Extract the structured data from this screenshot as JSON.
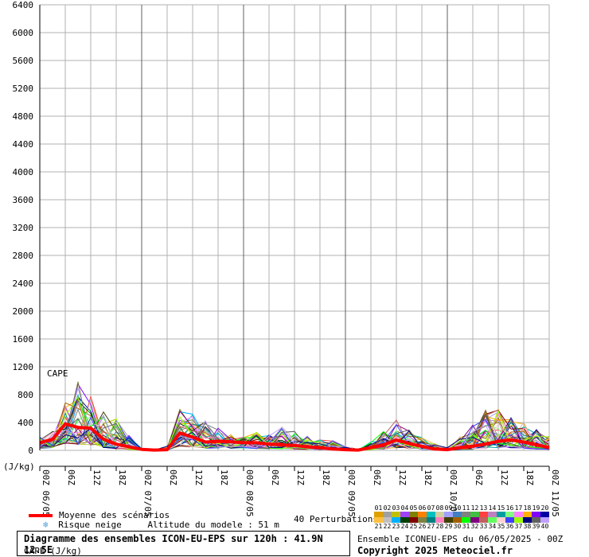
{
  "chart_data": {
    "type": "line",
    "title": "Diagramme des ensembles ICON-EU-EPS sur 120h : 41.9N 12.5E",
    "subtitle": "CAPE (J/kg)",
    "inner_label": "CAPE",
    "ylabel": "(J/kg)",
    "ylim": [
      0,
      6400
    ],
    "yticks": [
      0,
      400,
      800,
      1200,
      1600,
      2000,
      2400,
      2800,
      3200,
      3600,
      4000,
      4400,
      4800,
      5200,
      5600,
      6000,
      6400
    ],
    "xlim": [
      0,
      120
    ],
    "xtick_hours": [
      0,
      6,
      12,
      18,
      24,
      30,
      36,
      42,
      48,
      54,
      60,
      66,
      72,
      78,
      84,
      90,
      96,
      102,
      108,
      114,
      120
    ],
    "xtick_labels": [
      "00Z 06/05",
      "06Z",
      "12Z",
      "18Z",
      "00Z 07/05",
      "06Z",
      "12Z",
      "18Z",
      "00Z 08/05",
      "06Z",
      "12Z",
      "18Z",
      "00Z 09/05",
      "06Z",
      "12Z",
      "18Z",
      "00Z 10/05",
      "06Z",
      "12Z",
      "18Z",
      "00Z 11/05"
    ],
    "day_separators_hours": [
      24,
      48,
      72,
      96
    ],
    "grid": true,
    "legend_position": "bottom-left",
    "mean": {
      "name": "Moyenne des scénarios",
      "color": "#ff0000",
      "x": [
        0,
        3,
        6,
        9,
        12,
        15,
        18,
        21,
        24,
        27,
        30,
        33,
        36,
        39,
        42,
        45,
        48,
        51,
        54,
        57,
        60,
        63,
        66,
        69,
        72,
        75,
        78,
        81,
        84,
        87,
        90,
        93,
        96,
        99,
        102,
        105,
        108,
        111,
        114,
        117,
        120
      ],
      "y": [
        110,
        160,
        380,
        330,
        320,
        160,
        90,
        50,
        15,
        5,
        10,
        250,
        190,
        120,
        130,
        125,
        110,
        110,
        90,
        80,
        70,
        50,
        40,
        20,
        10,
        5,
        40,
        80,
        150,
        100,
        60,
        20,
        10,
        40,
        60,
        90,
        130,
        150,
        120,
        80,
        40
      ]
    },
    "members_count": 40,
    "member_label": "40 Perturbations",
    "member_numbers": [
      "01",
      "02",
      "03",
      "04",
      "05",
      "06",
      "07",
      "08",
      "09",
      "10",
      "11",
      "12",
      "13",
      "14",
      "15",
      "16",
      "17",
      "18",
      "19",
      "20",
      "21",
      "22",
      "23",
      "24",
      "25",
      "26",
      "27",
      "28",
      "29",
      "30",
      "31",
      "32",
      "33",
      "34",
      "35",
      "36",
      "37",
      "38",
      "39",
      "40"
    ],
    "member_colors": [
      "#e0a000",
      "#a0a0a0",
      "#c0c000",
      "#a040ff",
      "#808000",
      "#ff8000",
      "#00c0c0",
      "#d0d0a0",
      "#a0a0ff",
      "#4080c0",
      "#808080",
      "#40c040",
      "#ff4040",
      "#c080c0",
      "#00a0a0",
      "#80ff80",
      "#ff80ff",
      "#ffb000",
      "#8000ff",
      "#0000a0",
      "#ffc040",
      "#c0c0c0",
      "#00b0ff",
      "#004000",
      "#800000",
      "#808040",
      "#008080",
      "#ff80c0",
      "#404000",
      "#a06000",
      "#00ff00",
      "#800080",
      "#c06060",
      "#60ff60",
      "#ffd0d0",
      "#4040ff",
      "#a0ff00",
      "#000080",
      "#606060",
      "#c0a0ff"
    ],
    "envelope_max": [
      190,
      300,
      700,
      1000,
      800,
      560,
      470,
      220,
      30,
      10,
      60,
      600,
      560,
      430,
      330,
      270,
      220,
      260,
      240,
      370,
      280,
      220,
      160,
      140,
      60,
      20,
      120,
      280,
      450,
      300,
      200,
      100,
      40,
      200,
      400,
      600,
      650,
      480,
      420,
      300,
      200
    ]
  },
  "legend": {
    "mean_label": "Moyenne des scénarios",
    "snow_label": "Risque neige",
    "snow_icon": "snowflake-icon",
    "altitude_text": "Altitude du modele : 51 m"
  },
  "footer": {
    "ensemble_text": "Ensemble ICONEU-EPS du 06/05/2025 - 00Z",
    "copyright": "Copyright 2025 Meteociel.fr"
  }
}
